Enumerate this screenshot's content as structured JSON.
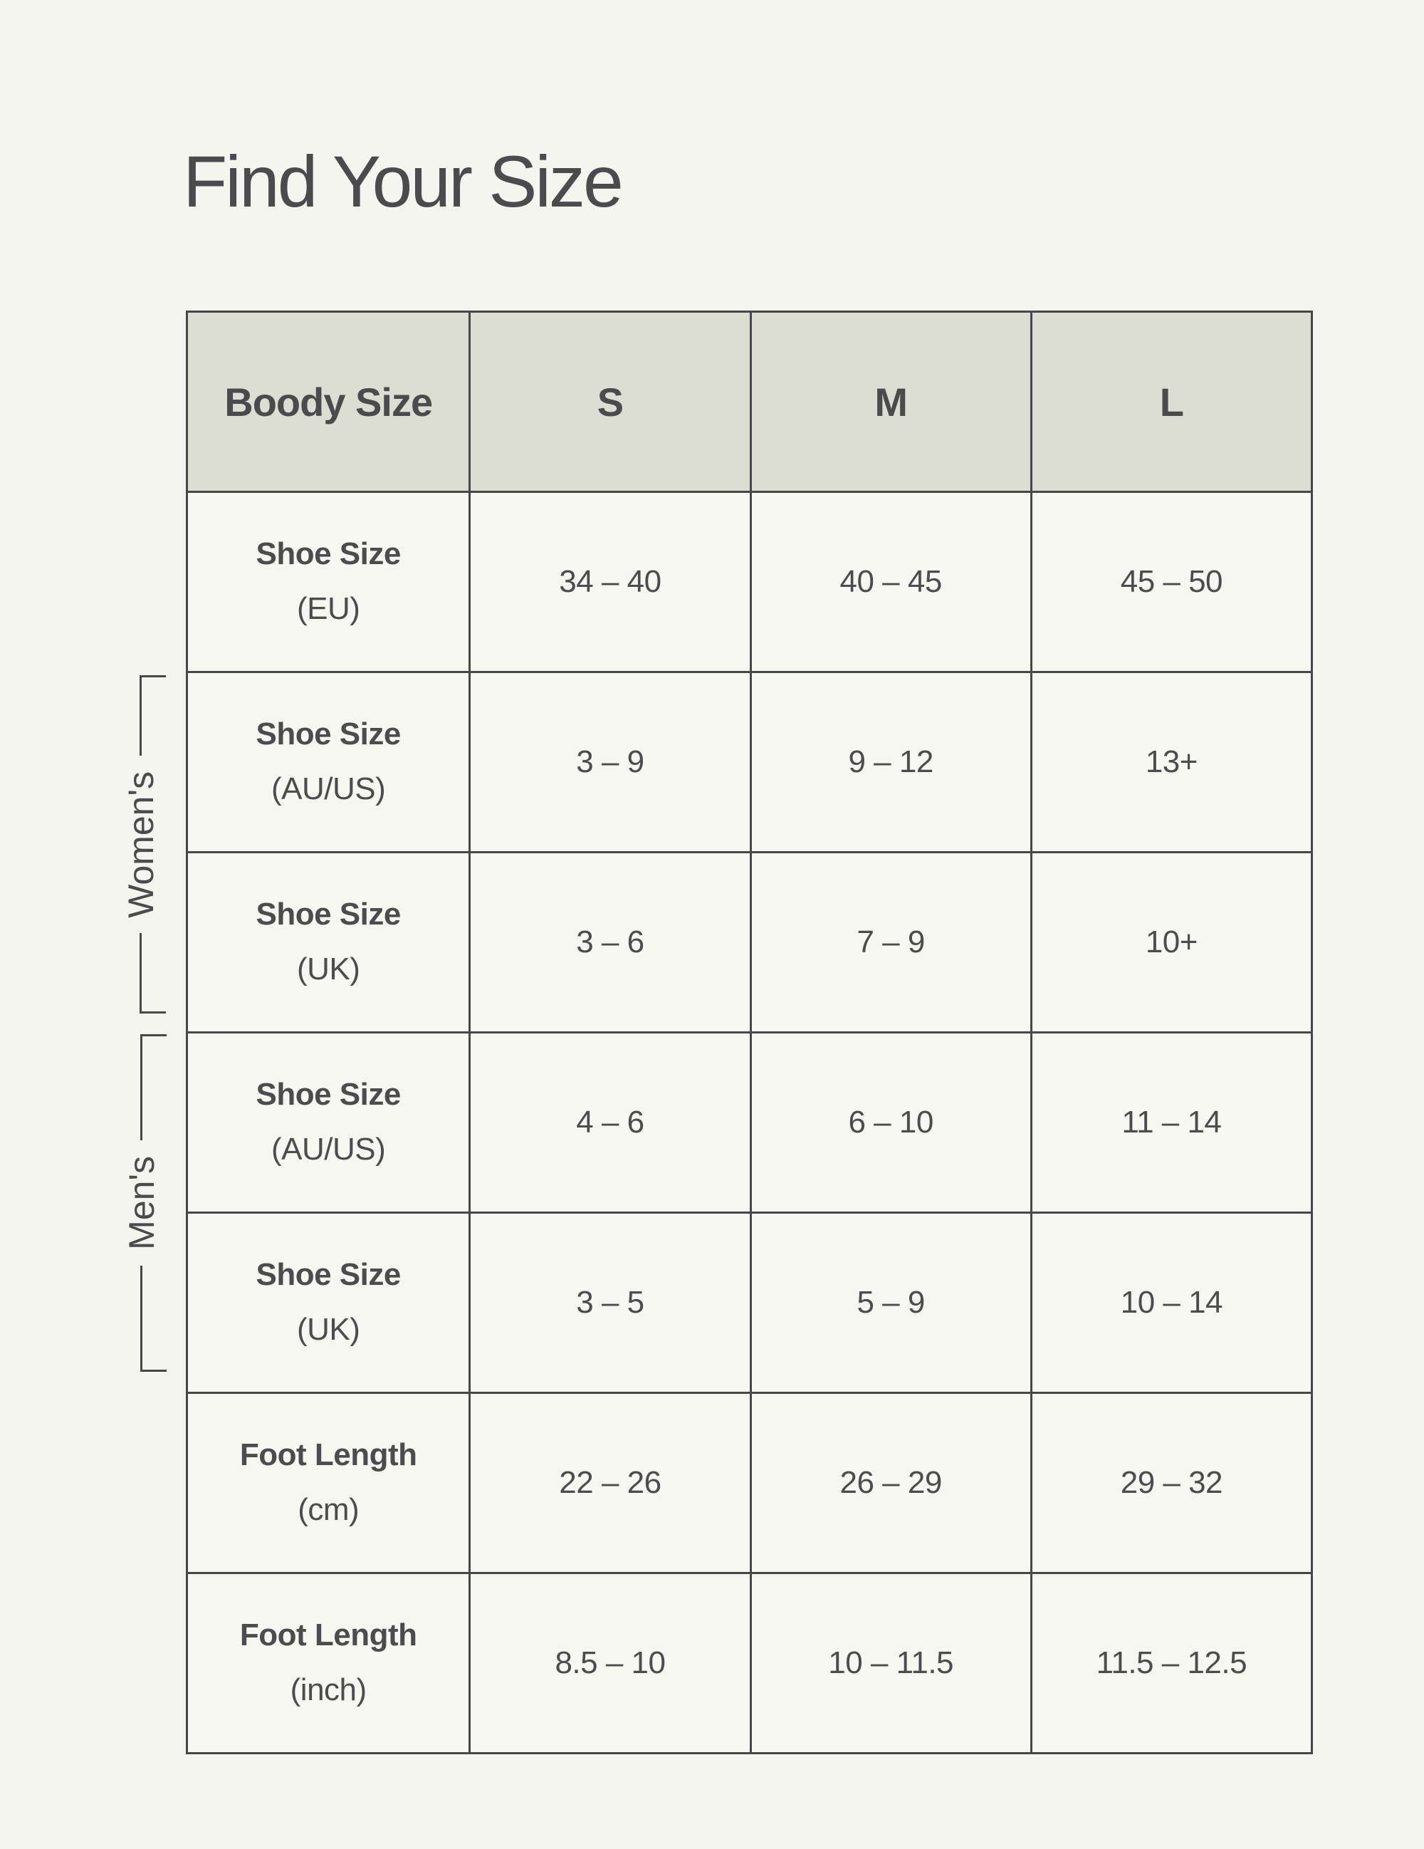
{
  "page": {
    "title": "Find Your Size"
  },
  "table": {
    "header": [
      "Boody Size",
      "S",
      "M",
      "L"
    ],
    "rows": [
      {
        "label": "Shoe Size",
        "sub": "(EU)",
        "values": [
          "34 – 40",
          "40 – 45",
          "45 – 50"
        ]
      },
      {
        "label": "Shoe Size",
        "sub": "(AU/US)",
        "values": [
          "3 – 9",
          "9 – 12",
          "13+"
        ]
      },
      {
        "label": "Shoe Size",
        "sub": "(UK)",
        "values": [
          "3 – 6",
          "7 – 9",
          "10+"
        ]
      },
      {
        "label": "Shoe Size",
        "sub": "(AU/US)",
        "values": [
          "4 – 6",
          "6 – 10",
          "11 – 14"
        ]
      },
      {
        "label": "Shoe Size",
        "sub": "(UK)",
        "values": [
          "3 – 5",
          "5 – 9",
          "10 – 14"
        ]
      },
      {
        "label": "Foot Length",
        "sub": "(cm)",
        "values": [
          "22 – 26",
          "26 – 29",
          "29 – 32"
        ]
      },
      {
        "label": "Foot Length",
        "sub": "(inch)",
        "values": [
          "8.5 – 10",
          "10 – 11.5",
          "11.5 – 12.5"
        ]
      }
    ],
    "groups": [
      {
        "label": "Women's"
      },
      {
        "label": "Men's"
      }
    ]
  },
  "colors": {
    "page_bg": "#f5f5f0",
    "cell_bg": "#f7f7f2",
    "header_bg": "#dcded4",
    "border": "#47474a",
    "text": "#4c4c4e"
  },
  "chart_data": {
    "type": "table",
    "title": "Find Your Size",
    "columns": [
      "Boody Size",
      "S",
      "M",
      "L"
    ],
    "rows": [
      [
        "Shoe Size (EU)",
        "34 – 40",
        "40 – 45",
        "45 – 50"
      ],
      [
        "Women's Shoe Size (AU/US)",
        "3 – 9",
        "9 – 12",
        "13+"
      ],
      [
        "Women's Shoe Size (UK)",
        "3 – 6",
        "7 – 9",
        "10+"
      ],
      [
        "Men's Shoe Size (AU/US)",
        "4 – 6",
        "6 – 10",
        "11 – 14"
      ],
      [
        "Men's Shoe Size (UK)",
        "3 – 5",
        "5 – 9",
        "10 – 14"
      ],
      [
        "Foot Length (cm)",
        "22 – 26",
        "26 – 29",
        "29 – 32"
      ],
      [
        "Foot Length (inch)",
        "8.5 – 10",
        "10 – 11.5",
        "11.5 – 12.5"
      ]
    ]
  }
}
